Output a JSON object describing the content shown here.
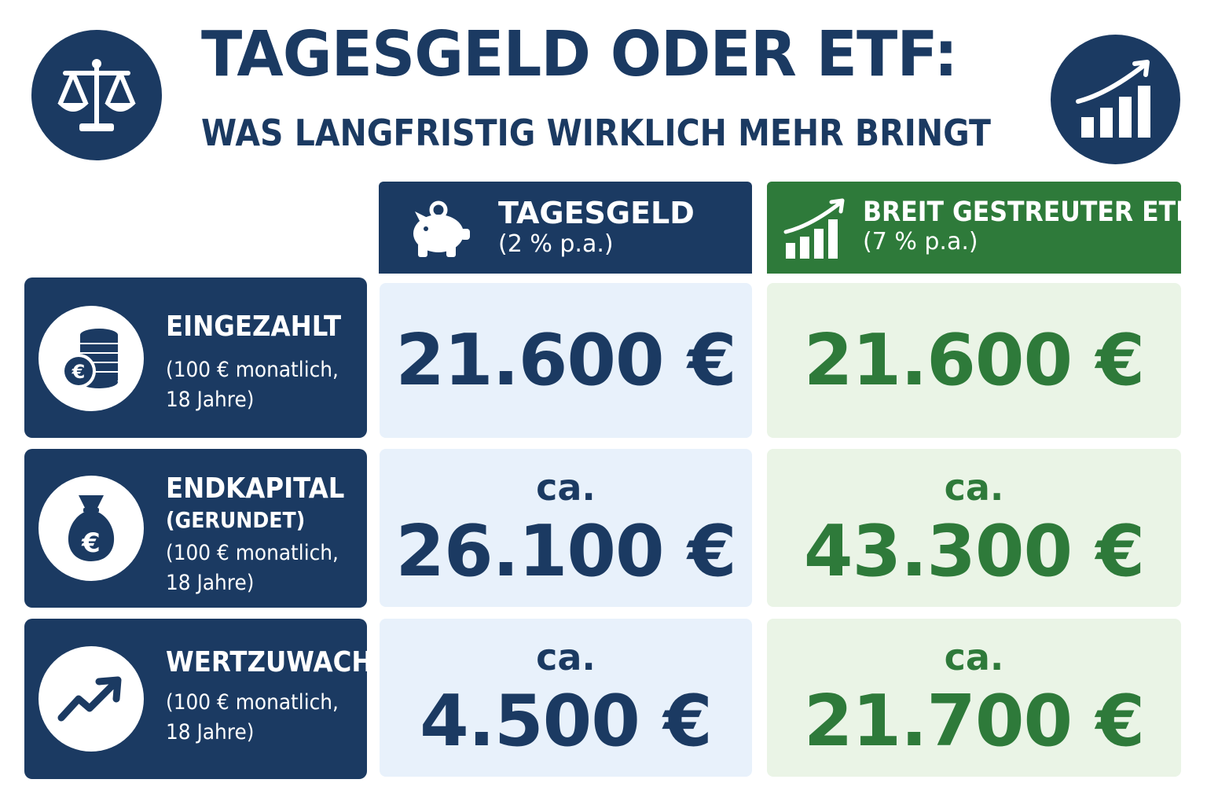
{
  "header": {
    "title": "TAGESGELD ODER ETF:",
    "subtitle": "WAS LANGFRISTIG WIRKLICH MEHR BRINGT",
    "left_icon": "balance-scale-icon",
    "right_icon": "growth-chart-icon"
  },
  "columns": [
    {
      "title": "TAGESGELD",
      "rate": "(2 % p.a.)",
      "icon": "piggy-bank-icon",
      "color": "#1b3a62"
    },
    {
      "title": "BREIT GESTREUTER ETF",
      "rate": "(7 % p.a.)",
      "icon": "growth-chart-icon",
      "color": "#2e7a3a"
    }
  ],
  "rows": [
    {
      "label": "EINGEZAHLT",
      "qualifier": "",
      "description_line1": "(100 € monatlich,",
      "description_line2": "18 Jahre)",
      "icon": "coins-euro-icon",
      "tagesgeld": {
        "prefix": "",
        "value": "21.600 €"
      },
      "etf": {
        "prefix": "",
        "value": "21.600 €"
      }
    },
    {
      "label": "ENDKAPITAL",
      "qualifier": "(GERUNDET)",
      "description_line1": "(100 € monatlich,",
      "description_line2": "18 Jahre)",
      "icon": "money-bag-euro-icon",
      "tagesgeld": {
        "prefix": "ca.",
        "value": "26.100 €"
      },
      "etf": {
        "prefix": "ca.",
        "value": "43.300 €"
      }
    },
    {
      "label": "WERTZUWACHS",
      "qualifier": "",
      "description_line1": "(100 € monatlich,",
      "description_line2": "18 Jahre)",
      "icon": "trend-up-arrow-icon",
      "tagesgeld": {
        "prefix": "ca.",
        "value": "4.500 €"
      },
      "etf": {
        "prefix": "ca.",
        "value": "21.700 €"
      }
    }
  ]
}
